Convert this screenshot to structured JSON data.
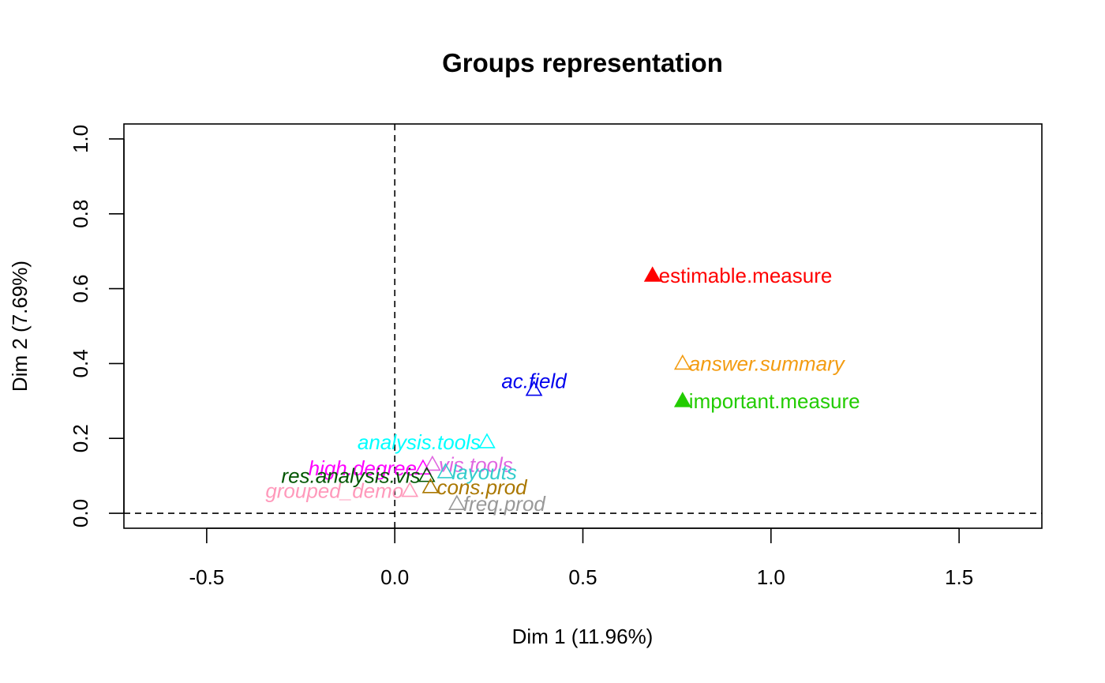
{
  "chart_data": {
    "type": "scatter",
    "title": "Groups representation",
    "xlabel": "Dim 1 (11.96%)",
    "ylabel": "Dim 2 (7.69%)",
    "xlim": [
      -0.72,
      1.72
    ],
    "ylim": [
      -0.04,
      1.04
    ],
    "xticks": [
      -0.5,
      0.0,
      0.5,
      1.0,
      1.5
    ],
    "xtick_labels": [
      "-0.5",
      "0.0",
      "0.5",
      "1.0",
      "1.5"
    ],
    "yticks": [
      0.0,
      0.2,
      0.4,
      0.6,
      0.8,
      1.0
    ],
    "ytick_labels": [
      "0.0",
      "0.2",
      "0.4",
      "0.6",
      "0.8",
      "1.0"
    ],
    "reference_lines": {
      "x": 0,
      "y": 0,
      "style": "dashed"
    },
    "grid": false,
    "points": [
      {
        "name": "estimable.measure",
        "x": 0.685,
        "y": 0.635,
        "color": "#ff0000",
        "filled": true,
        "italic": false,
        "label_pos": "right"
      },
      {
        "name": "answer.summary",
        "x": 0.765,
        "y": 0.4,
        "color": "#f39c12",
        "filled": false,
        "italic": true,
        "label_pos": "right"
      },
      {
        "name": "important.measure",
        "x": 0.765,
        "y": 0.3,
        "color": "#22cc00",
        "filled": true,
        "italic": false,
        "label_pos": "right"
      },
      {
        "name": "ac.field",
        "x": 0.37,
        "y": 0.33,
        "color": "#0000ee",
        "filled": false,
        "italic": true,
        "label_pos": "above"
      },
      {
        "name": "analysis.tools",
        "x": 0.245,
        "y": 0.19,
        "color": "#00ffff",
        "filled": false,
        "italic": true,
        "label_pos": "left"
      },
      {
        "name": "vis.tools",
        "x": 0.1,
        "y": 0.13,
        "color": "#e066e0",
        "filled": false,
        "italic": true,
        "label_pos": "right"
      },
      {
        "name": "high.degree",
        "x": 0.075,
        "y": 0.12,
        "color": "#ff00ff",
        "filled": false,
        "italic": true,
        "label_pos": "left"
      },
      {
        "name": "layouts",
        "x": 0.135,
        "y": 0.11,
        "color": "#33cccc",
        "filled": false,
        "italic": true,
        "label_pos": "right"
      },
      {
        "name": "res.analysis.vis",
        "x": 0.085,
        "y": 0.1,
        "color": "#005500",
        "filled": false,
        "italic": true,
        "label_pos": "left"
      },
      {
        "name": "cons.prod",
        "x": 0.095,
        "y": 0.07,
        "color": "#aa7700",
        "filled": false,
        "italic": true,
        "label_pos": "right"
      },
      {
        "name": "grouped_demo",
        "x": 0.04,
        "y": 0.06,
        "color": "#ff99bb",
        "filled": false,
        "italic": true,
        "label_pos": "left"
      },
      {
        "name": "freq.prod",
        "x": 0.165,
        "y": 0.025,
        "color": "#999999",
        "filled": false,
        "italic": true,
        "label_pos": "right"
      }
    ]
  }
}
